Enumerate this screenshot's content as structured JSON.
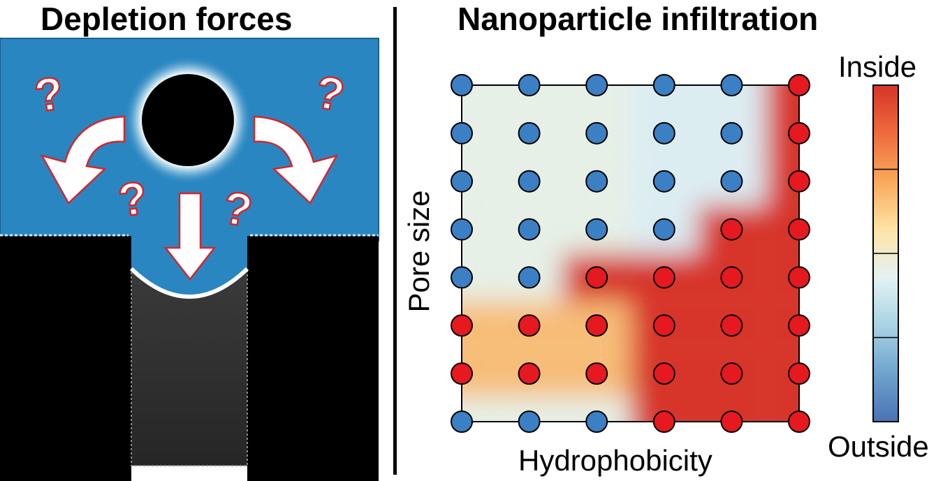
{
  "left_panel": {
    "title": "Depletion forces",
    "question_mark": "?",
    "colors": {
      "solvent": "#2a86c0",
      "wall": "#000000",
      "halo": "#e8f4fb",
      "pore_fill": "#2b2b2b",
      "marker_outline": "#e0242a"
    }
  },
  "right_panel": {
    "title": "Nanoparticle infiltration",
    "xlabel": "Hydrophobicity",
    "ylabel": "Pore size",
    "colorbar": {
      "top_label": "Inside",
      "bottom_label": "Outside",
      "colors": [
        "#d7342a",
        "#ee6b3c",
        "#f9a95a",
        "#fde4a4",
        "#e4f2f4",
        "#a8d3e4",
        "#6ea3cc",
        "#4a72b5"
      ]
    },
    "colors": {
      "inside": "#e5191f",
      "outside": "#3b7fc4",
      "map_low": "#e6f0e6",
      "map_high": "#d7342a"
    },
    "grid": {
      "columns": 6,
      "rows": 8,
      "states_top_to_bottom": [
        [
          "outside",
          "outside",
          "outside",
          "outside",
          "outside",
          "inside"
        ],
        [
          "outside",
          "outside",
          "outside",
          "outside",
          "outside",
          "inside"
        ],
        [
          "outside",
          "outside",
          "outside",
          "outside",
          "outside",
          "inside"
        ],
        [
          "outside",
          "outside",
          "outside",
          "outside",
          "inside",
          "inside"
        ],
        [
          "outside",
          "outside",
          "inside",
          "inside",
          "inside",
          "inside"
        ],
        [
          "inside",
          "inside",
          "inside",
          "inside",
          "inside",
          "inside"
        ],
        [
          "inside",
          "inside",
          "inside",
          "inside",
          "inside",
          "inside"
        ],
        [
          "outside",
          "outside",
          "outside",
          "inside",
          "inside",
          "inside"
        ]
      ]
    }
  }
}
